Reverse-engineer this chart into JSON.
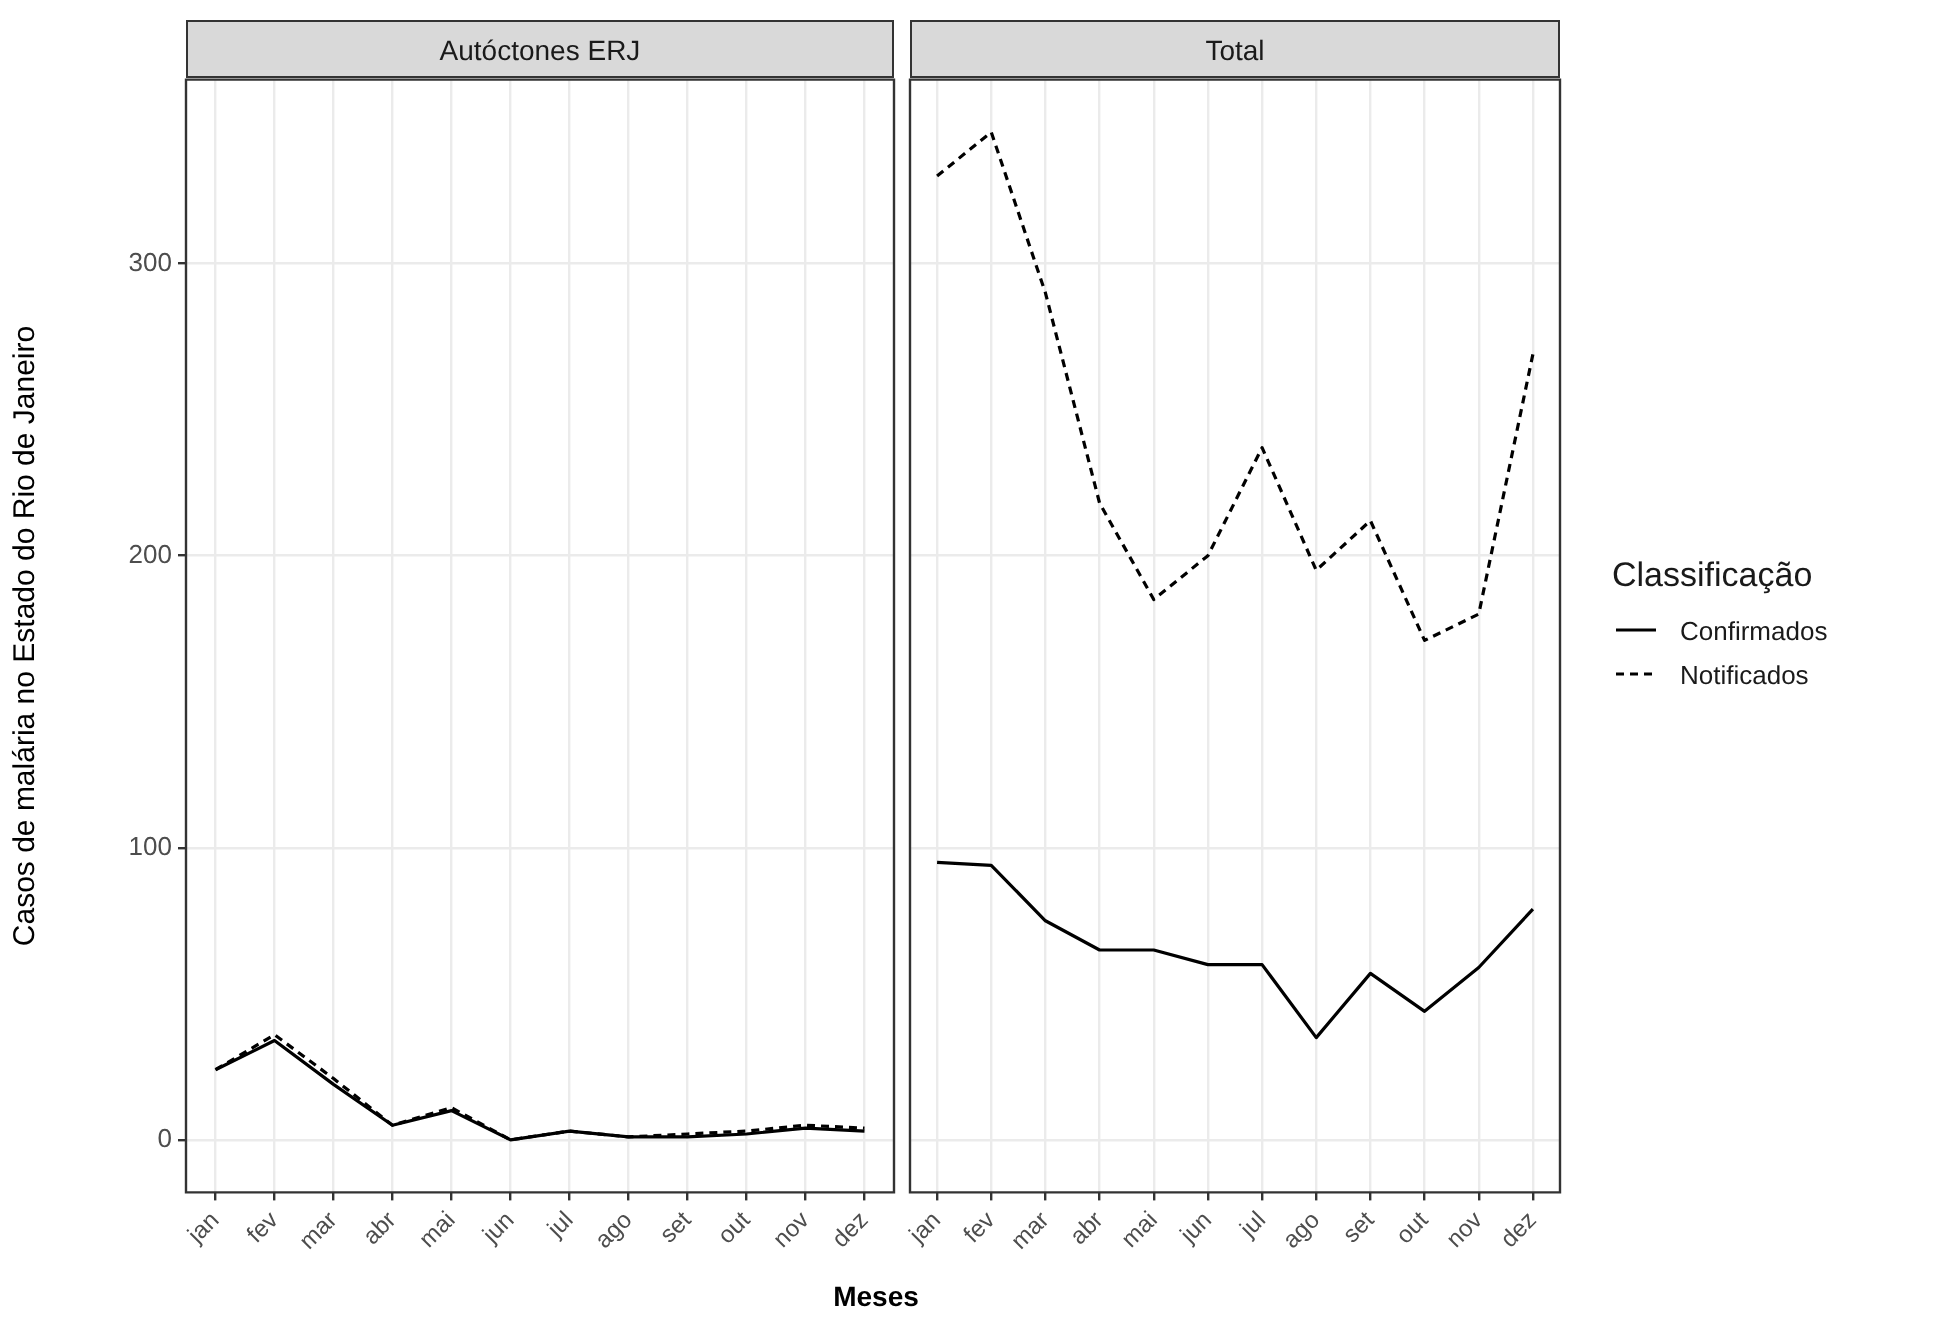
{
  "chart_data": [
    {
      "type": "line",
      "title": "Autóctones ERJ",
      "ylabel": "Casos de malária no Estado do Rio de Janeiro",
      "xlabel": "Meses",
      "categories": [
        "jan",
        "fev",
        "mar",
        "abr",
        "mai",
        "jun",
        "jul",
        "ago",
        "set",
        "out",
        "nov",
        "dez"
      ],
      "series": [
        {
          "color": "#000000",
          "line_style": "solid",
          "values": [
            24,
            34,
            19,
            5,
            10,
            0,
            3,
            1,
            1,
            2,
            4,
            3
          ]
        },
        {
          "color": "#000000",
          "line_style": "dashed",
          "values": [
            24,
            36,
            21,
            5,
            11,
            0,
            3,
            1,
            2,
            3,
            5,
            4
          ]
        }
      ],
      "ylim": [
        -18,
        363
      ],
      "yticks": [
        0,
        100,
        200,
        300
      ],
      "grid": true,
      "marker": "none",
      "legend": false
    },
    {
      "type": "line",
      "title": "Total",
      "categories": [
        "jan",
        "fev",
        "mar",
        "abr",
        "mai",
        "jun",
        "jul",
        "ago",
        "set",
        "out",
        "nov",
        "dez"
      ],
      "series": [
        {
          "name": "Confirmados",
          "color": "#000000",
          "line_style": "solid",
          "values": [
            95,
            94,
            75,
            65,
            65,
            60,
            60,
            35,
            57,
            44,
            59,
            79
          ]
        },
        {
          "name": "Notificados",
          "color": "#000000",
          "line_style": "dashed",
          "values": [
            330,
            345,
            290,
            218,
            185,
            200,
            237,
            195,
            212,
            171,
            180,
            269
          ]
        }
      ],
      "ylim": [
        -18,
        363
      ],
      "yticks": [
        0,
        100,
        200,
        300
      ],
      "grid": true,
      "marker": "none",
      "tick_labels": "x",
      "legend": "right",
      "legend_title": "Classificação"
    }
  ]
}
